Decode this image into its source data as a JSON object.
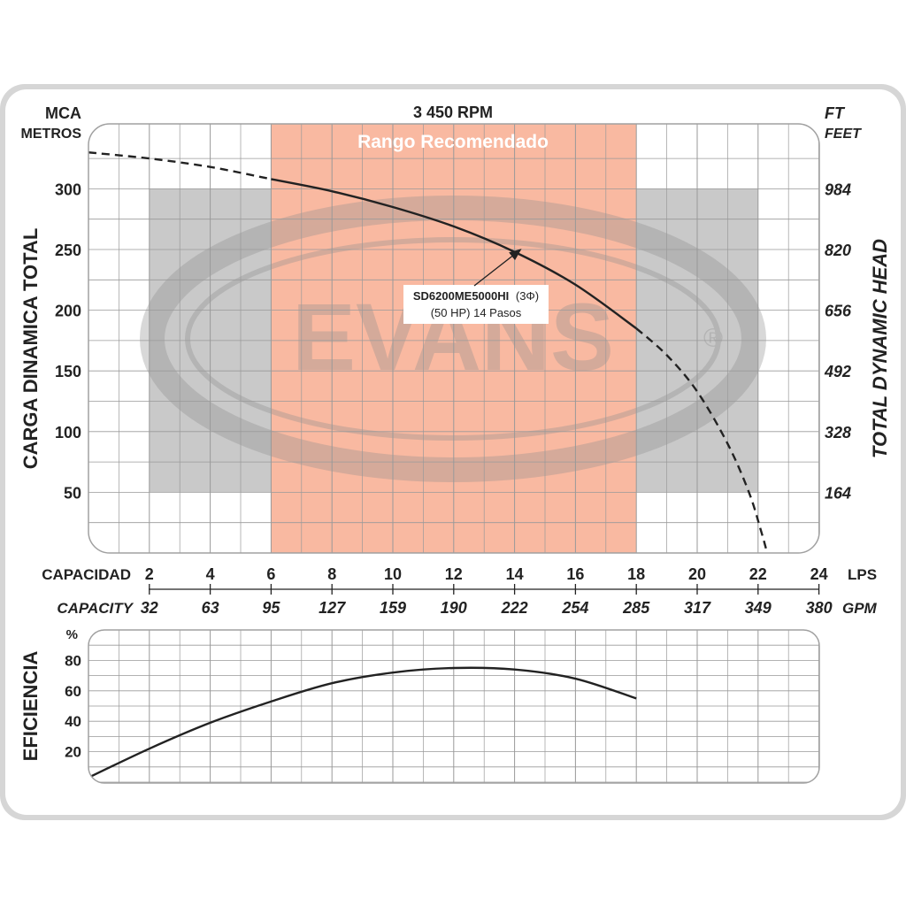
{
  "chart_data": [
    {
      "type": "line",
      "title": "3 450 RPM",
      "ylabel_left": "CARGA  DINAMICA  TOTAL",
      "ylabel_right": "TOTAL  DYNAMIC  HEAD",
      "y_unit_left_top": "MCA",
      "y_unit_left_bottom": "METROS",
      "y_unit_right_top": "FT",
      "y_unit_right_bottom": "FEET",
      "yticks_left": [
        300,
        250,
        200,
        150,
        100,
        50
      ],
      "yticks_right": [
        "984",
        "820",
        "656",
        "492",
        "328",
        "164"
      ],
      "ylim": [
        0,
        340
      ],
      "x_lps_label": "CAPACIDAD",
      "x_lps_unit": "LPS",
      "x_gpm_label": "CAPACITY",
      "x_gpm_unit": "GPM",
      "xticks_lps": [
        "2",
        "4",
        "6",
        "8",
        "10",
        "12",
        "14",
        "16",
        "18",
        "20",
        "22",
        "24"
      ],
      "xticks_gpm": [
        "32",
        "63",
        "95",
        "127",
        "159",
        "190",
        "222",
        "254",
        "285",
        "317",
        "349",
        "380"
      ],
      "xlim_lps": [
        0,
        24
      ],
      "recommended_range": {
        "label": "Rango Recomendado",
        "from_lps": 6,
        "to_lps": 18,
        "color": "#f9b9a1"
      },
      "grey_zones": [
        {
          "from_lps": 2,
          "to_lps": 6,
          "y_from": 50,
          "y_to": 300
        },
        {
          "from_lps": 18,
          "to_lps": 22,
          "y_from": 50,
          "y_to": 300
        }
      ],
      "annotation": {
        "line1": "SD6200ME5000HI",
        "line1b": "(3Φ)",
        "line2": "(50 HP) 14 Pasos",
        "arrow_to_lps": 14.2,
        "arrow_to_y": 250
      },
      "series": [
        {
          "style": "dashed",
          "points": [
            [
              0,
              330
            ],
            [
              2,
              325
            ],
            [
              4,
              318
            ],
            [
              6,
              308
            ]
          ]
        },
        {
          "style": "solid",
          "points": [
            [
              6,
              308
            ],
            [
              8,
              298
            ],
            [
              10,
              285
            ],
            [
              12,
              269
            ],
            [
              14,
              248
            ],
            [
              16,
              221
            ],
            [
              18,
              185
            ]
          ]
        },
        {
          "style": "dashed",
          "points": [
            [
              18,
              185
            ],
            [
              19,
              163
            ],
            [
              20,
              133
            ],
            [
              21,
              90
            ],
            [
              21.7,
              50
            ],
            [
              22.1,
              18
            ],
            [
              22.3,
              0
            ]
          ]
        }
      ],
      "watermark": "EVANS"
    },
    {
      "type": "line",
      "ylabel": "EFICIENCIA",
      "y_unit": "%",
      "yticks": [
        80,
        60,
        40,
        20
      ],
      "ylim": [
        0,
        100
      ],
      "xlim_lps": [
        0,
        24
      ],
      "series": [
        {
          "style": "solid",
          "points": [
            [
              0,
              3
            ],
            [
              2,
              22
            ],
            [
              4,
              39
            ],
            [
              6,
              53
            ],
            [
              8,
              65
            ],
            [
              10,
              72
            ],
            [
              12,
              75
            ],
            [
              14,
              74
            ],
            [
              16,
              68
            ],
            [
              18,
              55
            ]
          ]
        }
      ]
    }
  ],
  "colors": {
    "frame": "#d7d7d7",
    "grid": "#999999",
    "range": "#f9b9a1",
    "grey_zone": "#c9c9c9",
    "curve": "#222222"
  }
}
